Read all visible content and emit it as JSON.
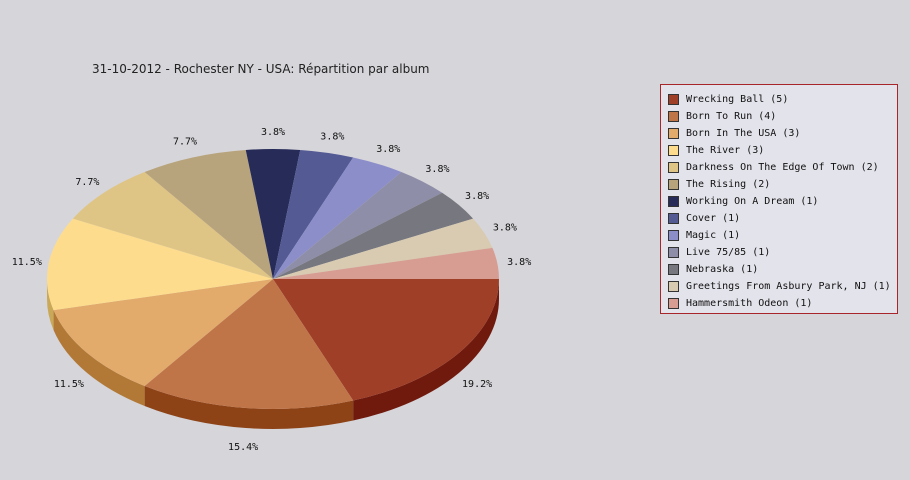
{
  "chart_data": {
    "type": "pie",
    "title": "31-10-2012 - Rochester NY - USA:  Répartition par album",
    "legend_position": "right",
    "slices": [
      {
        "label": "Wrecking Ball (5)",
        "value": 5,
        "pct_label": "19.2%",
        "color": "#a03f28",
        "side": "#701a0e"
      },
      {
        "label": "Born To Run (4)",
        "value": 4,
        "pct_label": "15.4%",
        "color": "#c07549",
        "side": "#8e4317"
      },
      {
        "label": "Born In The USA (3)",
        "value": 3,
        "pct_label": "11.5%",
        "color": "#e2ab6c",
        "side": "#b27936"
      },
      {
        "label": "The River (3)",
        "value": 3,
        "pct_label": "11.5%",
        "color": "#fddd8d",
        "side": "#c9a858"
      },
      {
        "label": "Darkness On The Edge Of Town (2)",
        "value": 2,
        "pct_label": "7.7%",
        "color": "#dfc585",
        "side": "#a9904f"
      },
      {
        "label": "The Rising (2)",
        "value": 2,
        "pct_label": "7.7%",
        "color": "#b8a47c",
        "side": "#87734a"
      },
      {
        "label": "Working On A Dream (1)",
        "value": 1,
        "pct_label": "3.8%",
        "color": "#262b58",
        "side": "#101330"
      },
      {
        "label": "Cover (1)",
        "value": 1,
        "pct_label": "3.8%",
        "color": "#545a94",
        "side": "#313669"
      },
      {
        "label": "Magic (1)",
        "value": 1,
        "pct_label": "3.8%",
        "color": "#8c8ec9",
        "side": "#5e6099"
      },
      {
        "label": "Live 75/85 (1)",
        "value": 1,
        "pct_label": "3.8%",
        "color": "#8e8ea8",
        "side": "#62627c"
      },
      {
        "label": "Nebraska (1)",
        "value": 1,
        "pct_label": "3.8%",
        "color": "#77777f",
        "side": "#4d4d55"
      },
      {
        "label": "Greetings From Asbury Park, NJ (1)",
        "value": 1,
        "pct_label": "3.8%",
        "color": "#d8cbb1",
        "side": "#a89a80"
      },
      {
        "label": "Hammersmith Odeon  (1)",
        "value": 1,
        "pct_label": "3.8%",
        "color": "#d89d92",
        "side": "#a66b60"
      }
    ]
  }
}
